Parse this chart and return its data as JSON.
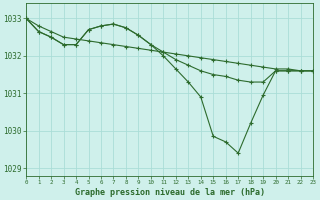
{
  "bg_color": "#cff0eb",
  "grid_color": "#aaddd7",
  "line_color": "#2d6b2d",
  "title": "Graphe pression niveau de la mer (hPa)",
  "xlim": [
    0,
    23
  ],
  "ylim": [
    1028.8,
    1033.4
  ],
  "yticks": [
    1029,
    1030,
    1031,
    1032,
    1033
  ],
  "xticks": [
    0,
    1,
    2,
    3,
    4,
    5,
    6,
    7,
    8,
    9,
    10,
    11,
    12,
    13,
    14,
    15,
    16,
    17,
    18,
    19,
    20,
    21,
    22,
    23
  ],
  "series": [
    {
      "x": [
        0,
        1,
        2,
        3,
        4,
        5,
        6,
        7,
        8,
        9,
        10,
        11,
        12,
        13,
        14,
        15,
        16,
        17,
        18,
        19,
        20,
        21,
        22,
        23
      ],
      "y": [
        1033.0,
        1032.8,
        1032.65,
        1032.5,
        1032.45,
        1032.4,
        1032.35,
        1032.3,
        1032.25,
        1032.2,
        1032.15,
        1032.1,
        1032.05,
        1032.0,
        1031.95,
        1031.9,
        1031.85,
        1031.8,
        1031.75,
        1031.7,
        1031.65,
        1031.65,
        1031.6,
        1031.6
      ]
    },
    {
      "x": [
        0,
        1,
        2,
        3,
        4,
        5,
        6,
        7,
        8,
        9,
        10,
        11,
        12,
        13,
        14,
        15,
        16,
        17,
        18,
        19,
        20,
        21,
        22,
        23
      ],
      "y": [
        1033.0,
        1032.65,
        1032.5,
        1032.3,
        1032.3,
        1032.7,
        1032.8,
        1032.85,
        1032.75,
        1032.55,
        1032.3,
        1032.1,
        1031.9,
        1031.75,
        1031.6,
        1031.5,
        1031.45,
        1031.35,
        1031.3,
        1031.3,
        1031.6,
        1031.6,
        1031.6,
        1031.6
      ]
    },
    {
      "x": [
        0,
        1,
        2,
        3,
        4,
        5,
        6,
        7,
        8,
        9,
        10,
        11,
        12,
        13,
        14,
        15,
        16,
        17,
        18,
        19,
        20,
        21,
        22,
        23
      ],
      "y": [
        1033.0,
        1032.65,
        1032.5,
        1032.3,
        1032.3,
        1032.7,
        1032.8,
        1032.85,
        1032.75,
        1032.55,
        1032.3,
        1032.0,
        1031.65,
        1031.3,
        1030.9,
        1029.85,
        1029.7,
        1029.4,
        1030.2,
        1030.95,
        1031.6,
        1031.6,
        1031.6,
        1031.6
      ]
    }
  ]
}
